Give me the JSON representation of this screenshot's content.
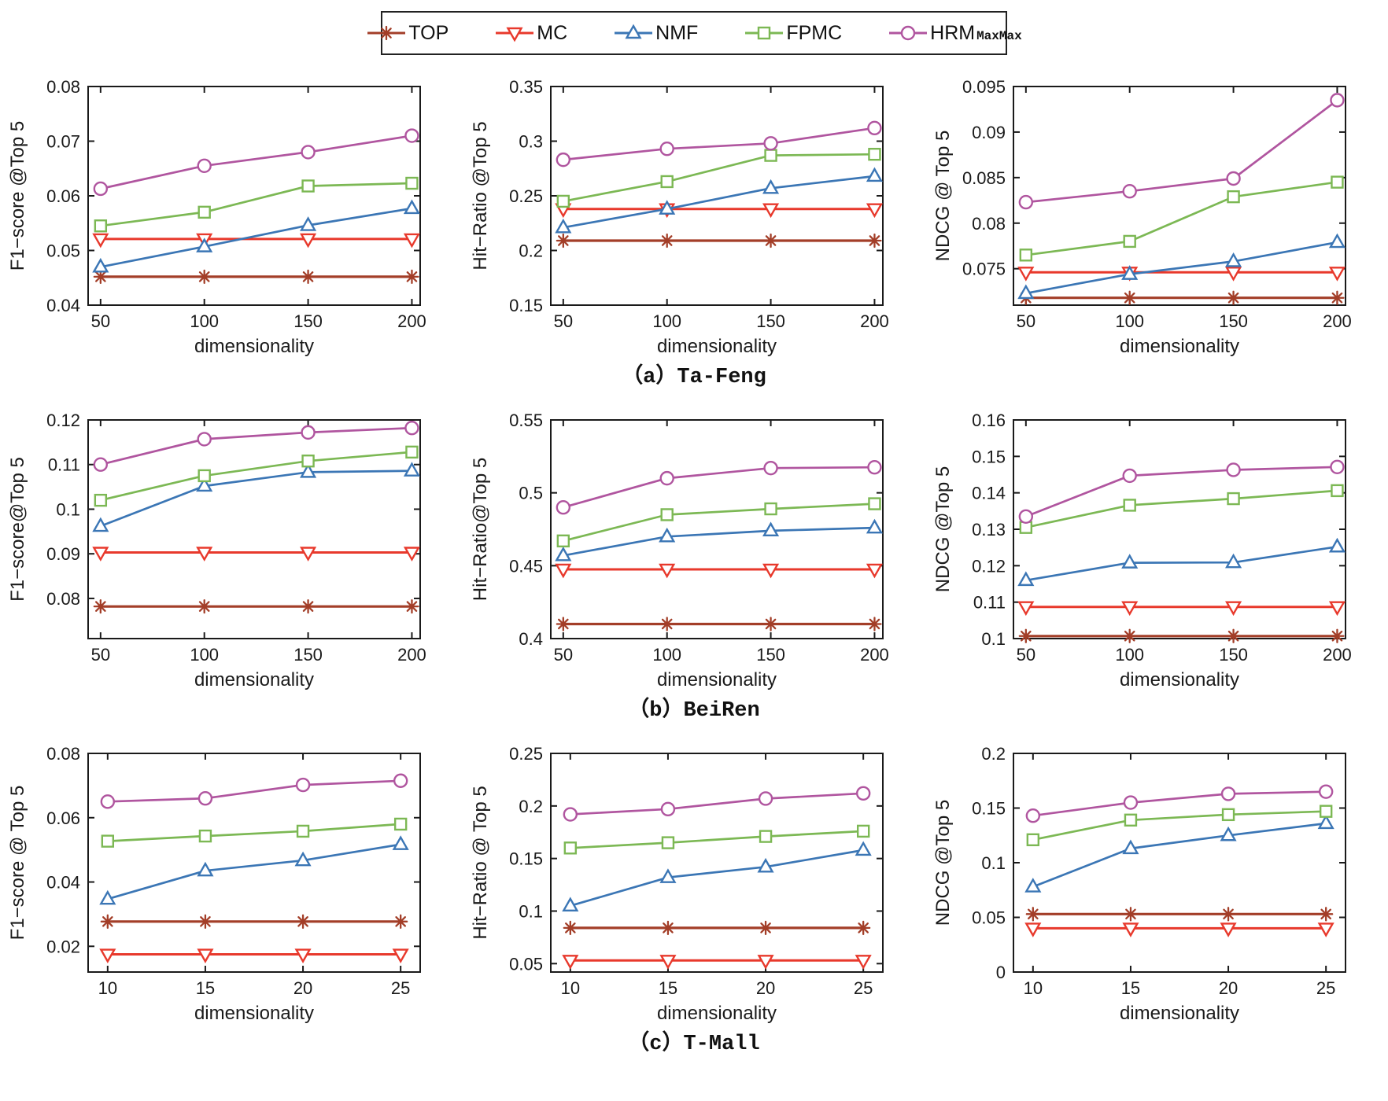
{
  "legend": {
    "items": [
      {
        "name": "TOP",
        "label": "TOP",
        "subscript": ""
      },
      {
        "name": "MC",
        "label": "MC",
        "subscript": ""
      },
      {
        "name": "NMF",
        "label": "NMF",
        "subscript": ""
      },
      {
        "name": "FPMC",
        "label": "FPMC",
        "subscript": ""
      },
      {
        "name": "HRM",
        "label": "HRM",
        "subscript": "MaxMax"
      }
    ]
  },
  "series_styles": {
    "TOP": {
      "color": "#A33E28",
      "marker": "asterisk",
      "line_width": 3.2
    },
    "MC": {
      "color": "#E8392C",
      "marker": "triangle-down",
      "line_width": 3.0
    },
    "NMF": {
      "color": "#3B76B5",
      "marker": "triangle-up",
      "line_width": 2.7
    },
    "FPMC": {
      "color": "#7CB854",
      "marker": "square",
      "line_width": 2.7
    },
    "HRM": {
      "color": "#B0559F",
      "marker": "circle",
      "line_width": 2.7
    }
  },
  "figure": {
    "captions": [
      "（a）Ta-Feng",
      "（b）BeiRen",
      "（c）T-Mall"
    ]
  },
  "chart_data": [
    {
      "id": "ta-feng-f1",
      "type": "line",
      "title": "",
      "ylabel": "F1−score @Top 5",
      "xlabel": "dimensionality",
      "x": [
        50,
        100,
        150,
        200
      ],
      "xtick_labels": [
        "50",
        "100",
        "150",
        "200"
      ],
      "xlim": [
        44,
        204
      ],
      "ylim": [
        0.04,
        0.08
      ],
      "yticks": [
        0.04,
        0.05,
        0.06,
        0.07,
        0.08
      ],
      "ytick_labels": [
        "0.04",
        "0.05",
        "0.06",
        "0.07",
        "0.08"
      ],
      "grid": false,
      "series": [
        {
          "name": "TOP",
          "values": [
            0.0452,
            0.0452,
            0.0452,
            0.0452
          ]
        },
        {
          "name": "MC",
          "values": [
            0.0521,
            0.0521,
            0.0521,
            0.0521
          ]
        },
        {
          "name": "NMF",
          "values": [
            0.047,
            0.0507,
            0.0546,
            0.0577
          ]
        },
        {
          "name": "FPMC",
          "values": [
            0.0545,
            0.057,
            0.0618,
            0.0623
          ]
        },
        {
          "name": "HRM",
          "values": [
            0.0613,
            0.0655,
            0.068,
            0.071
          ]
        }
      ]
    },
    {
      "id": "ta-feng-hitratio",
      "type": "line",
      "title": "",
      "ylabel": "Hit−Ratio @Top 5",
      "xlabel": "dimensionality",
      "x": [
        50,
        100,
        150,
        200
      ],
      "xtick_labels": [
        "50",
        "100",
        "150",
        "200"
      ],
      "xlim": [
        44,
        204
      ],
      "ylim": [
        0.15,
        0.35
      ],
      "yticks": [
        0.15,
        0.2,
        0.25,
        0.3,
        0.35
      ],
      "ytick_labels": [
        "0.15",
        "0.2",
        "0.25",
        "0.3",
        "0.35"
      ],
      "grid": false,
      "series": [
        {
          "name": "TOP",
          "values": [
            0.209,
            0.209,
            0.209,
            0.209
          ]
        },
        {
          "name": "MC",
          "values": [
            0.238,
            0.238,
            0.238,
            0.238
          ]
        },
        {
          "name": "NMF",
          "values": [
            0.221,
            0.238,
            0.257,
            0.268
          ]
        },
        {
          "name": "FPMC",
          "values": [
            0.245,
            0.263,
            0.287,
            0.288
          ]
        },
        {
          "name": "HRM",
          "values": [
            0.283,
            0.293,
            0.298,
            0.312
          ]
        }
      ]
    },
    {
      "id": "ta-feng-ndcg",
      "type": "line",
      "title": "",
      "ylabel": "NDCG @ Top 5",
      "xlabel": "dimensionality",
      "x": [
        50,
        100,
        150,
        200
      ],
      "xtick_labels": [
        "50",
        "100",
        "150",
        "200"
      ],
      "xlim": [
        44,
        204
      ],
      "ylim": [
        0.071,
        0.095
      ],
      "yticks": [
        0.075,
        0.08,
        0.085,
        0.09,
        0.095
      ],
      "ytick_labels": [
        "0.075",
        "0.08",
        "0.085",
        "0.09",
        "0.095"
      ],
      "grid": false,
      "series": [
        {
          "name": "TOP",
          "values": [
            0.0718,
            0.0718,
            0.0718,
            0.0718
          ]
        },
        {
          "name": "MC",
          "values": [
            0.0746,
            0.0746,
            0.0746,
            0.0746
          ]
        },
        {
          "name": "NMF",
          "values": [
            0.0723,
            0.0744,
            0.0758,
            0.0779
          ]
        },
        {
          "name": "FPMC",
          "values": [
            0.0765,
            0.078,
            0.0829,
            0.0845
          ]
        },
        {
          "name": "HRM",
          "values": [
            0.0823,
            0.0835,
            0.0849,
            0.0935
          ]
        }
      ]
    },
    {
      "id": "beiren-f1",
      "type": "line",
      "title": "",
      "ylabel": "F1−score@Top 5",
      "xlabel": "dimensionality",
      "x": [
        50,
        100,
        150,
        200
      ],
      "xtick_labels": [
        "50",
        "100",
        "150",
        "200"
      ],
      "xlim": [
        44,
        204
      ],
      "ylim": [
        0.071,
        0.12
      ],
      "yticks": [
        0.08,
        0.09,
        0.1,
        0.11,
        0.12
      ],
      "ytick_labels": [
        "0.08",
        "0.09",
        "0.1",
        "0.11",
        "0.12"
      ],
      "grid": false,
      "series": [
        {
          "name": "TOP",
          "values": [
            0.0782,
            0.0782,
            0.0782,
            0.0782
          ]
        },
        {
          "name": "MC",
          "values": [
            0.0903,
            0.0903,
            0.0903,
            0.0903
          ]
        },
        {
          "name": "NMF",
          "values": [
            0.0962,
            0.1052,
            0.1083,
            0.1086
          ]
        },
        {
          "name": "FPMC",
          "values": [
            0.102,
            0.1075,
            0.1108,
            0.1128
          ]
        },
        {
          "name": "HRM",
          "values": [
            0.11,
            0.1157,
            0.1172,
            0.1182
          ]
        }
      ]
    },
    {
      "id": "beiren-hitratio",
      "type": "line",
      "title": "",
      "ylabel": "Hit−Ratio@Top 5",
      "xlabel": "dimensionality",
      "x": [
        50,
        100,
        150,
        200
      ],
      "xtick_labels": [
        "50",
        "100",
        "150",
        "200"
      ],
      "xlim": [
        44,
        204
      ],
      "ylim": [
        0.4,
        0.55
      ],
      "yticks": [
        0.4,
        0.45,
        0.5,
        0.55
      ],
      "ytick_labels": [
        "0.4",
        "0.45",
        "0.5",
        "0.55"
      ],
      "grid": false,
      "series": [
        {
          "name": "TOP",
          "values": [
            0.41,
            0.41,
            0.41,
            0.41
          ]
        },
        {
          "name": "MC",
          "values": [
            0.4475,
            0.4475,
            0.4475,
            0.4475
          ]
        },
        {
          "name": "NMF",
          "values": [
            0.457,
            0.47,
            0.474,
            0.476
          ]
        },
        {
          "name": "FPMC",
          "values": [
            0.467,
            0.485,
            0.489,
            0.4925
          ]
        },
        {
          "name": "HRM",
          "values": [
            0.49,
            0.51,
            0.517,
            0.5175
          ]
        }
      ]
    },
    {
      "id": "beiren-ndcg",
      "type": "line",
      "title": "",
      "ylabel": "NDCG @Top 5",
      "xlabel": "dimensionality",
      "x": [
        50,
        100,
        150,
        200
      ],
      "xtick_labels": [
        "50",
        "100",
        "150",
        "200"
      ],
      "xlim": [
        44,
        204
      ],
      "ylim": [
        0.1,
        0.16
      ],
      "yticks": [
        0.1,
        0.11,
        0.12,
        0.13,
        0.14,
        0.15,
        0.16
      ],
      "ytick_labels": [
        "0.1",
        "0.11",
        "0.12",
        "0.13",
        "0.14",
        "0.15",
        "0.16"
      ],
      "grid": false,
      "series": [
        {
          "name": "TOP",
          "values": [
            0.1007,
            0.1007,
            0.1007,
            0.1007
          ]
        },
        {
          "name": "MC",
          "values": [
            0.1087,
            0.1087,
            0.1087,
            0.1087
          ]
        },
        {
          "name": "NMF",
          "values": [
            0.116,
            0.1208,
            0.1209,
            0.1252
          ]
        },
        {
          "name": "FPMC",
          "values": [
            0.1305,
            0.1366,
            0.1384,
            0.1406
          ]
        },
        {
          "name": "HRM",
          "values": [
            0.1335,
            0.1447,
            0.1463,
            0.1471
          ]
        }
      ]
    },
    {
      "id": "tmall-f1",
      "type": "line",
      "title": "",
      "ylabel": "F1−score @ Top 5",
      "xlabel": "dimensionality",
      "x": [
        10,
        15,
        20,
        25
      ],
      "xtick_labels": [
        "10",
        "15",
        "20",
        "25"
      ],
      "xlim": [
        9,
        26
      ],
      "ylim": [
        0.012,
        0.08
      ],
      "yticks": [
        0.02,
        0.04,
        0.06,
        0.08
      ],
      "ytick_labels": [
        "0.02",
        "0.04",
        "0.06",
        "0.08"
      ],
      "grid": false,
      "series": [
        {
          "name": "TOP",
          "values": [
            0.0277,
            0.0277,
            0.0277,
            0.0277
          ]
        },
        {
          "name": "MC",
          "values": [
            0.0175,
            0.0175,
            0.0175,
            0.0175
          ]
        },
        {
          "name": "NMF",
          "values": [
            0.0347,
            0.0435,
            0.0467,
            0.0517
          ]
        },
        {
          "name": "FPMC",
          "values": [
            0.0527,
            0.0543,
            0.0558,
            0.058
          ]
        },
        {
          "name": "HRM",
          "values": [
            0.065,
            0.066,
            0.0702,
            0.0715
          ]
        }
      ]
    },
    {
      "id": "tmall-hitratio",
      "type": "line",
      "title": "",
      "ylabel": "Hit−Ratio @ Top 5",
      "xlabel": "dimensionality",
      "x": [
        10,
        15,
        20,
        25
      ],
      "xtick_labels": [
        "10",
        "15",
        "20",
        "25"
      ],
      "xlim": [
        9,
        26
      ],
      "ylim": [
        0.042,
        0.25
      ],
      "yticks": [
        0.05,
        0.1,
        0.15,
        0.2,
        0.25
      ],
      "ytick_labels": [
        "0.05",
        "0.1",
        "0.15",
        "0.2",
        "0.25"
      ],
      "grid": false,
      "series": [
        {
          "name": "TOP",
          "values": [
            0.084,
            0.084,
            0.084,
            0.084
          ]
        },
        {
          "name": "MC",
          "values": [
            0.053,
            0.053,
            0.053,
            0.053
          ]
        },
        {
          "name": "NMF",
          "values": [
            0.105,
            0.132,
            0.142,
            0.158
          ]
        },
        {
          "name": "FPMC",
          "values": [
            0.16,
            0.165,
            0.171,
            0.176
          ]
        },
        {
          "name": "HRM",
          "values": [
            0.192,
            0.197,
            0.207,
            0.212
          ]
        }
      ]
    },
    {
      "id": "tmall-ndcg",
      "type": "line",
      "title": "",
      "ylabel": "NDCG @Top 5",
      "xlabel": "dimensionality",
      "x": [
        10,
        15,
        20,
        25
      ],
      "xtick_labels": [
        "10",
        "15",
        "20",
        "25"
      ],
      "xlim": [
        9,
        26
      ],
      "ylim": [
        0,
        0.2
      ],
      "yticks": [
        0,
        0.05,
        0.1,
        0.15,
        0.2
      ],
      "ytick_labels": [
        "0",
        "0.05",
        "0.1",
        "0.15",
        "0.2"
      ],
      "grid": false,
      "series": [
        {
          "name": "TOP",
          "values": [
            0.053,
            0.053,
            0.053,
            0.053
          ]
        },
        {
          "name": "MC",
          "values": [
            0.04,
            0.04,
            0.04,
            0.04
          ]
        },
        {
          "name": "NMF",
          "values": [
            0.078,
            0.113,
            0.125,
            0.136
          ]
        },
        {
          "name": "FPMC",
          "values": [
            0.121,
            0.139,
            0.144,
            0.147
          ]
        },
        {
          "name": "HRM",
          "values": [
            0.143,
            0.155,
            0.163,
            0.165
          ]
        }
      ]
    }
  ]
}
